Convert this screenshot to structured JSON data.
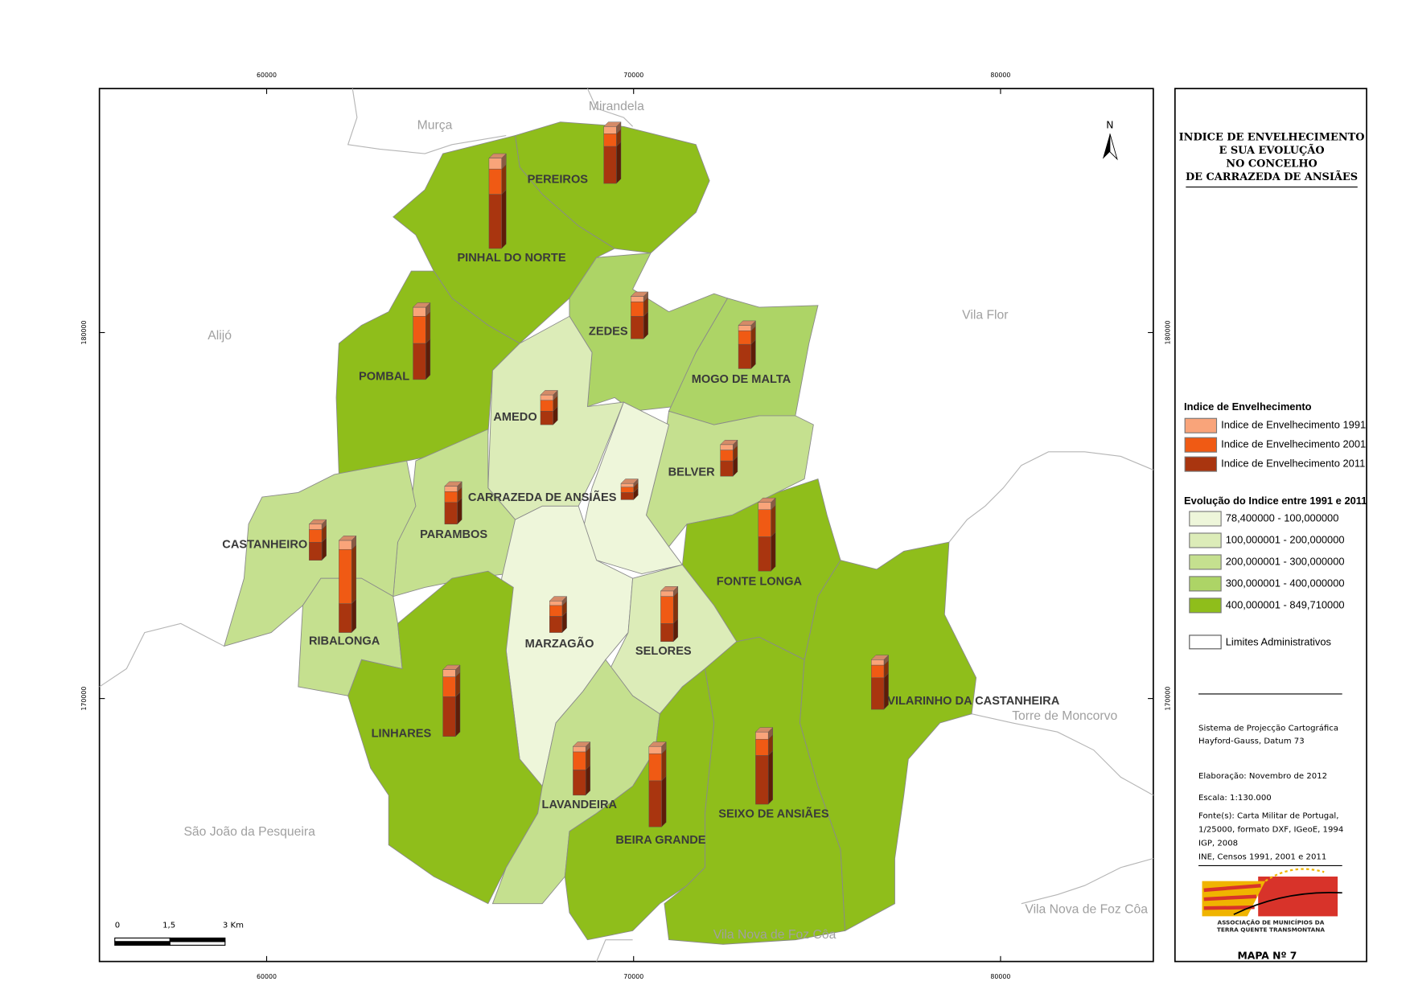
{
  "title_lines": [
    "INDICE DE ENVELHECIMENTO",
    "E SUA EVOLUÇÃO",
    "NO CONCELHO",
    "DE CARRAZEDA DE ANSIÃES"
  ],
  "eastings": [
    60000,
    70000,
    80000
  ],
  "northings": [
    180000,
    170000
  ],
  "north": "N",
  "neighbors": [
    "Murça",
    "Mirandela",
    "Alijó",
    "Vila Flor",
    "Torre de Moncorvo",
    "São João da Pesqueira",
    "Vila Nova de Foz Côa",
    "Vila Nova de Foz Côa"
  ],
  "parishes": [
    {
      "name": "PEREIROS",
      "values": [
        8,
        14,
        41
      ]
    },
    {
      "name": "PINHAL DO NORTE",
      "values": [
        12,
        28,
        60
      ]
    },
    {
      "name": "ZEDES",
      "values": [
        6,
        16,
        25
      ]
    },
    {
      "name": "MOGO DE MALTA",
      "values": [
        6,
        15,
        27
      ]
    },
    {
      "name": "POMBAL",
      "values": [
        10,
        30,
        40
      ]
    },
    {
      "name": "AMEDO",
      "values": [
        6,
        12,
        15
      ]
    },
    {
      "name": "BELVER",
      "values": [
        6,
        12,
        17
      ]
    },
    {
      "name": "CARRAZEDA DE ANSIÃES",
      "values": [
        4,
        6,
        8
      ]
    },
    {
      "name": "PARAMBOS",
      "values": [
        6,
        12,
        24
      ]
    },
    {
      "name": "CASTANHEIRO",
      "values": [
        6,
        14,
        20
      ]
    },
    {
      "name": "RIBALONGA",
      "values": [
        10,
        60,
        32
      ]
    },
    {
      "name": "FONTE LONGA",
      "values": [
        8,
        30,
        38
      ]
    },
    {
      "name": "MARZAGÃO",
      "values": [
        5,
        12,
        18
      ]
    },
    {
      "name": "SELORES",
      "values": [
        6,
        30,
        20
      ]
    },
    {
      "name": "VILARINHO DA CASTANHEIRA",
      "values": [
        6,
        14,
        35
      ]
    },
    {
      "name": "LINHARES",
      "values": [
        8,
        22,
        44
      ]
    },
    {
      "name": "LAVANDEIRA",
      "values": [
        6,
        20,
        28
      ]
    },
    {
      "name": "BEIRA GRANDE",
      "values": [
        8,
        30,
        51
      ]
    },
    {
      "name": "SEIXO DE ANSIÃES",
      "values": [
        8,
        18,
        54
      ]
    }
  ],
  "legend": {
    "title": "Indice de Envelhecimento",
    "series": [
      {
        "name": "Indice de Envelhecimento 1991",
        "color": "#f9a47a"
      },
      {
        "name": "Indice de Envelhecimento 2001",
        "color": "#f05a14"
      },
      {
        "name": "Indice de Envelhecimento 2011",
        "color": "#a9350f"
      }
    ],
    "classes_title": "Evolução do Indice entre 1991 e 2011",
    "classes": [
      {
        "label": "78,400000 - 100,000000",
        "color": "#eef6da"
      },
      {
        "label": "100,000001 - 200,000000",
        "color": "#dcecb8"
      },
      {
        "label": "200,000001 - 300,000000",
        "color": "#c5e08f"
      },
      {
        "label": "300,000001 - 400,000000",
        "color": "#add466"
      },
      {
        "label": "400,000001 - 849,710000",
        "color": "#8fbe1b"
      }
    ],
    "limits": "Limites Administrativos"
  },
  "info": [
    "Sistema de Projecção Cartográfica",
    "Hayford-Gauss, Datum 73",
    "Elaboração: Novembro de 2012",
    "Escala: 1:130.000",
    "Fonte(s): Carta Militar de Portugal,",
    "1/25000, formato DXF, IGeoE, 1994",
    "IGP, 2008",
    "INE, Censos 1991, 2001 e 2011"
  ],
  "scale_labels": [
    "0",
    "1,5",
    "3 Km"
  ],
  "logo_lines": [
    "ASSOCIAÇÃO DE MUNICÍPIOS DA",
    "TERRA QUENTE TRANSMONTANA"
  ],
  "map_number": "MAPA Nº 7"
}
